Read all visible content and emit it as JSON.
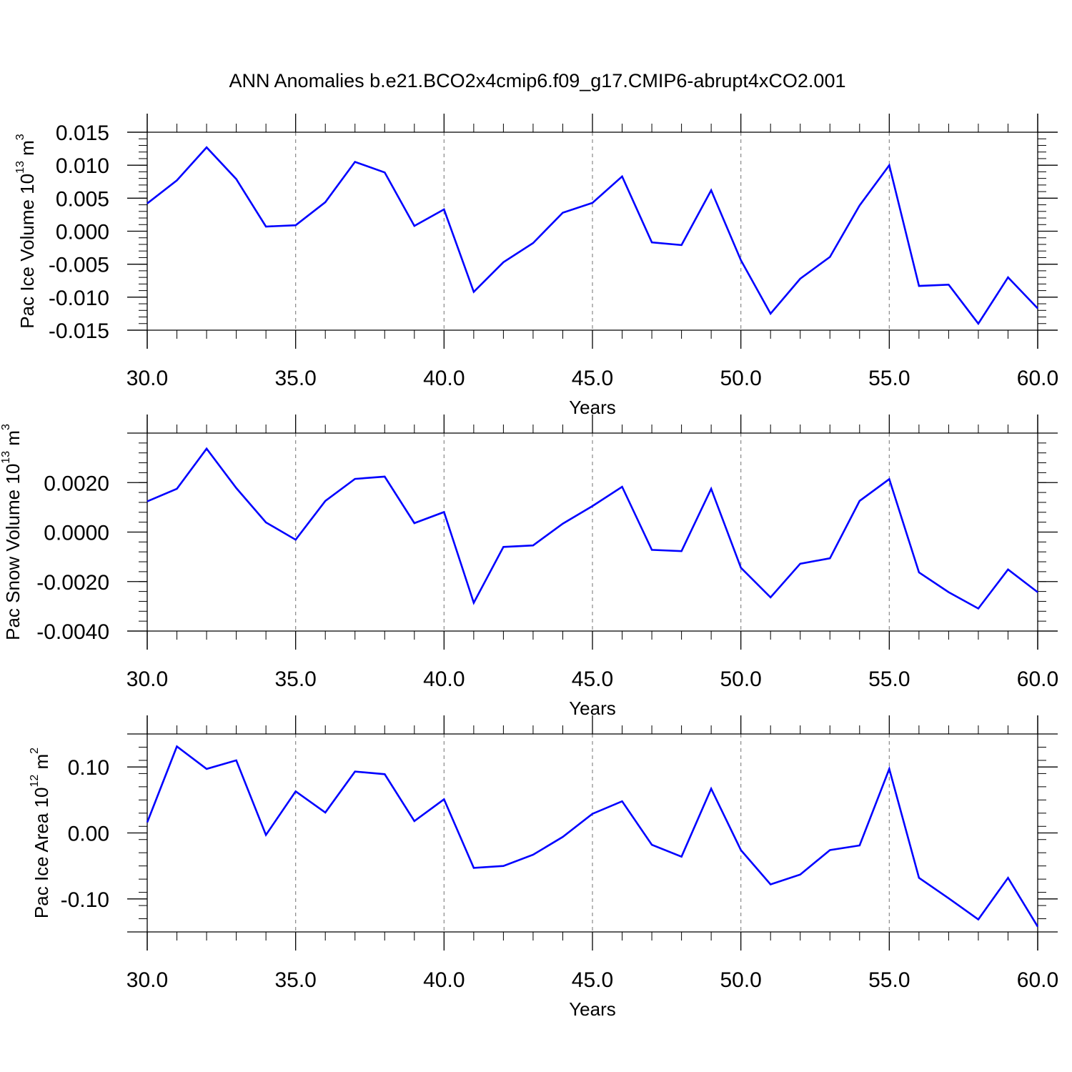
{
  "figure_title": "ANN Anomalies b.e21.BCO2x4cmip6.f09_g17.CMIP6-abrupt4xCO2.001",
  "colors": {
    "series": "#0000ff",
    "axes": "#000000",
    "grid": "#888888",
    "background": "#ffffff"
  },
  "chart_data": [
    {
      "type": "line",
      "title": "",
      "xlabel": "Years",
      "ylabel": {
        "text": "Pac Ice Volume 10",
        "sup": "13",
        "unit": " m",
        "unit_sup": "3"
      },
      "xlim": [
        30,
        60
      ],
      "ylim": [
        -0.015,
        0.015
      ],
      "yticks": [
        -0.015,
        -0.01,
        -0.005,
        0.0,
        0.005,
        0.01,
        0.015
      ],
      "ytick_labels": [
        "-0.015",
        "-0.010",
        "-0.005",
        "0.000",
        "0.005",
        "0.010",
        "0.015"
      ],
      "xticks": [
        30,
        35,
        40,
        45,
        50,
        55,
        60
      ],
      "xtick_labels": [
        "30.0",
        "35.0",
        "40.0",
        "45.0",
        "50.0",
        "55.0",
        "60.0"
      ],
      "grid": "vertical dashed at major x ticks",
      "series": [
        {
          "x": [
            30,
            31,
            32,
            33,
            34,
            35,
            36,
            37,
            38,
            39,
            40,
            41,
            42,
            43,
            44,
            45,
            46,
            47,
            48,
            49,
            50,
            51,
            52,
            53,
            54,
            55,
            56,
            57,
            58,
            59,
            60
          ],
          "values": [
            0.0042,
            0.0077,
            0.0127,
            0.0079,
            0.0007,
            0.0009,
            0.0044,
            0.0105,
            0.0089,
            0.0008,
            0.0033,
            -0.0092,
            -0.0047,
            -0.0018,
            0.0028,
            0.0043,
            0.0083,
            -0.0017,
            -0.0021,
            0.0062,
            -0.0044,
            -0.0125,
            -0.0072,
            -0.0039,
            0.0039,
            0.01,
            -0.0083,
            -0.0081,
            -0.014,
            -0.007,
            -0.0117
          ]
        }
      ]
    },
    {
      "type": "line",
      "title": "",
      "xlabel": "Years",
      "ylabel": {
        "text": "Pac Snow Volume 10",
        "sup": "13",
        "unit": " m",
        "unit_sup": "3"
      },
      "xlim": [
        30,
        60
      ],
      "ylim": [
        -0.004,
        0.004
      ],
      "yticks": [
        -0.004,
        -0.002,
        0.0,
        0.002
      ],
      "ytick_labels": [
        "-0.0040",
        "-0.0020",
        "0.0000",
        "0.0020"
      ],
      "xticks": [
        30,
        35,
        40,
        45,
        50,
        55,
        60
      ],
      "xtick_labels": [
        "30.0",
        "35.0",
        "40.0",
        "45.0",
        "50.0",
        "55.0",
        "60.0"
      ],
      "grid": "vertical dashed at major x ticks",
      "series": [
        {
          "x": [
            30,
            31,
            32,
            33,
            34,
            35,
            36,
            37,
            38,
            39,
            40,
            41,
            42,
            43,
            44,
            45,
            46,
            47,
            48,
            49,
            50,
            51,
            52,
            53,
            54,
            55,
            56,
            57,
            58,
            59,
            60
          ],
          "values": [
            0.00124,
            0.00175,
            0.00337,
            0.00178,
            0.00039,
            -0.00031,
            0.00126,
            0.00215,
            0.00224,
            0.00036,
            0.00081,
            -0.00286,
            -0.0006,
            -0.00054,
            0.00034,
            0.00105,
            0.00183,
            -0.00072,
            -0.00077,
            0.00175,
            -0.00144,
            -0.00264,
            -0.00128,
            -0.00106,
            0.00126,
            0.00214,
            -0.00163,
            -0.00243,
            -0.00309,
            -0.00151,
            -0.00243
          ]
        }
      ]
    },
    {
      "type": "line",
      "title": "",
      "xlabel": "Years",
      "ylabel": {
        "text": "Pac Ice Area 10",
        "sup": "12",
        "unit": " m",
        "unit_sup": "2"
      },
      "xlim": [
        30,
        60
      ],
      "ylim": [
        -0.15,
        0.15
      ],
      "yticks": [
        -0.1,
        0.0,
        0.1
      ],
      "ytick_labels": [
        "-0.10",
        "0.00",
        "0.10"
      ],
      "xticks": [
        30,
        35,
        40,
        45,
        50,
        55,
        60
      ],
      "xtick_labels": [
        "30.0",
        "35.0",
        "40.0",
        "45.0",
        "50.0",
        "55.0",
        "60.0"
      ],
      "grid": "vertical dashed at major x ticks",
      "series": [
        {
          "x": [
            30,
            31,
            32,
            33,
            34,
            35,
            36,
            37,
            38,
            39,
            40,
            41,
            42,
            43,
            44,
            45,
            46,
            47,
            48,
            49,
            50,
            51,
            52,
            53,
            54,
            55,
            56,
            57,
            58,
            59,
            60
          ],
          "values": [
            0.016,
            0.131,
            0.097,
            0.11,
            -0.003,
            0.063,
            0.031,
            0.093,
            0.089,
            0.018,
            0.051,
            -0.053,
            -0.05,
            -0.033,
            -0.006,
            0.029,
            0.048,
            -0.018,
            -0.036,
            0.067,
            -0.026,
            -0.078,
            -0.063,
            -0.026,
            -0.019,
            0.097,
            -0.068,
            -0.099,
            -0.131,
            -0.068,
            -0.142
          ]
        }
      ]
    }
  ]
}
